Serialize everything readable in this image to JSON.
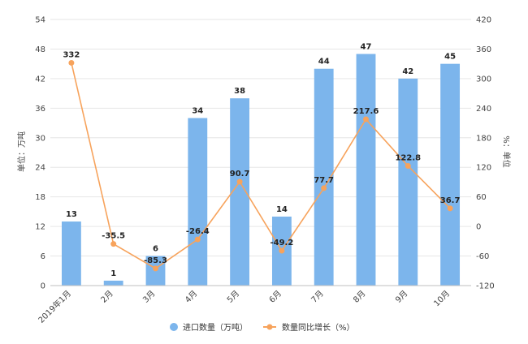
{
  "chart_data": {
    "type": "bar",
    "categories": [
      "2019年1月",
      "2月",
      "3月",
      "4月",
      "5月",
      "6月",
      "7月",
      "8月",
      "9月",
      "10月"
    ],
    "series": [
      {
        "name": "进口数量（万吨）",
        "type": "bar",
        "axis": "left",
        "color": "#7cb5ec",
        "values": [
          13,
          1,
          6,
          34,
          38,
          14,
          44,
          47,
          42,
          45
        ],
        "labels": [
          "13",
          "1",
          "6",
          "34",
          "38",
          "14",
          "44",
          "47",
          "42",
          "45"
        ]
      },
      {
        "name": "数量同比增长（%）",
        "type": "line",
        "axis": "right",
        "color": "#f7a35c",
        "values": [
          332,
          -35.5,
          -85.3,
          -26.4,
          90.7,
          -49.2,
          77.7,
          217.6,
          122.8,
          36.7
        ],
        "labels": [
          "332",
          "-35.5",
          "-85.3",
          "-26.4",
          "90.7",
          "-49.2",
          "77.7",
          "217.6",
          "122.8",
          "36.7"
        ]
      }
    ],
    "y_left": {
      "label": "单位：万吨",
      "ylim": [
        0,
        54
      ],
      "ticks": [
        "0",
        "6",
        "12",
        "18",
        "24",
        "30",
        "36",
        "42",
        "48",
        "54"
      ]
    },
    "y_right": {
      "label": "%：单位",
      "ylim": [
        -120,
        420
      ],
      "ticks": [
        "-120",
        "-60",
        "0",
        "60",
        "120",
        "180",
        "240",
        "300",
        "360",
        "420"
      ]
    },
    "grid": true,
    "legend_position": "bottom"
  }
}
